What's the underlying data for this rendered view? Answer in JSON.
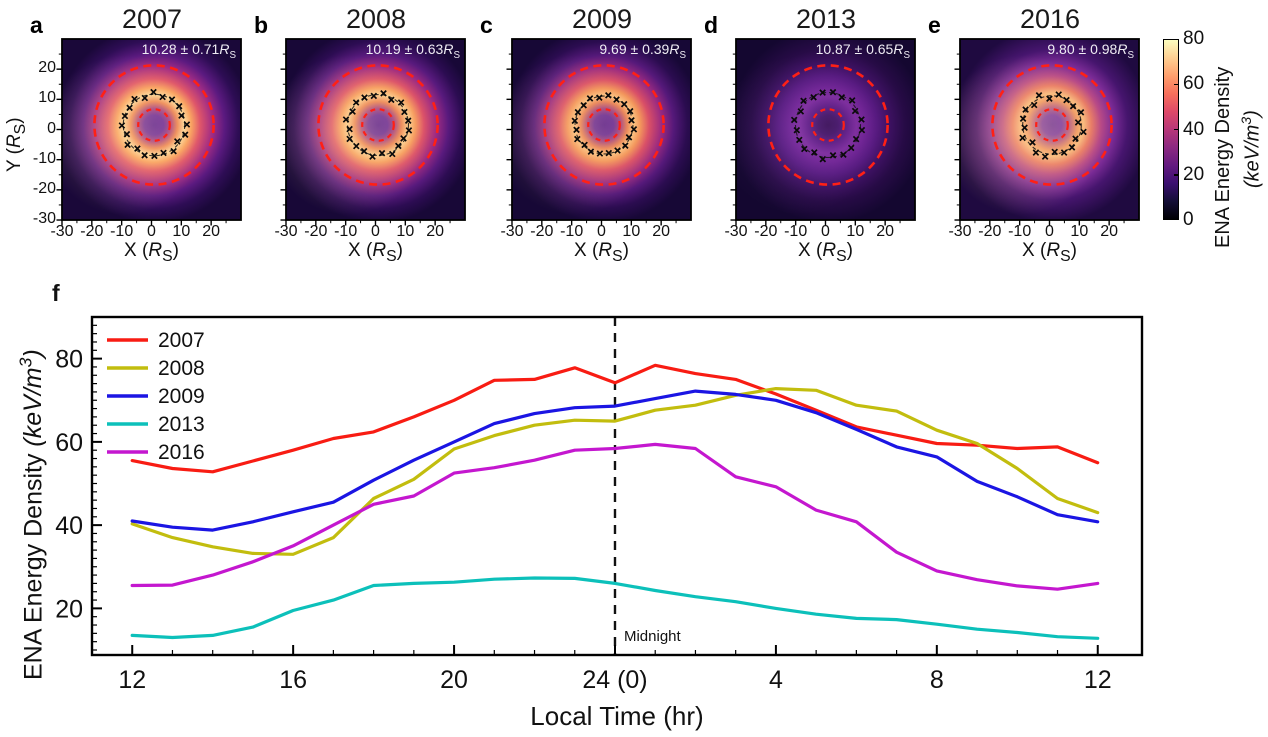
{
  "shared": {
    "r_symbol": "R",
    "r_sub": "S",
    "open": "(",
    "close": ")"
  },
  "heatmap_row": {
    "x_label_var": "X",
    "y_label_var": "Y",
    "x_ticks": [
      {
        "v": -30,
        "label": "-30"
      },
      {
        "v": -20,
        "label": "-20"
      },
      {
        "v": -10,
        "label": "-10"
      },
      {
        "v": 0,
        "label": "0"
      },
      {
        "v": 10,
        "label": "10"
      },
      {
        "v": 20,
        "label": "20"
      }
    ],
    "y_ticks": [
      {
        "v": 20,
        "label": "20"
      },
      {
        "v": 10,
        "label": "10"
      },
      {
        "v": 0,
        "label": "0"
      },
      {
        "v": -10,
        "label": "-10"
      },
      {
        "v": -20,
        "label": "-20"
      },
      {
        "v": -30,
        "label": "-30"
      }
    ],
    "axis_range_rs": [
      -30,
      30
    ],
    "outer_circle_radius_rs": 20,
    "inner_circle_radius_rs": 5.3,
    "circle_color": "#ff2015"
  },
  "panels": [
    {
      "letter": "a",
      "year": "2007",
      "ring_radius_text": "10.28 ± 0.71",
      "ring_radius_rs": 10.28,
      "ring_radius_err": 0.71,
      "seed": 0.3,
      "glow_color": "#ffd9a0",
      "glow_opacity": 0.32,
      "palette": [
        [
          0,
          "#5e2296"
        ],
        [
          0.1,
          "#6c2a9c"
        ],
        [
          0.17,
          "#a84383"
        ],
        [
          0.24,
          "#ee8a58"
        ],
        [
          0.31,
          "#fdd89a"
        ],
        [
          0.38,
          "#f9a15f"
        ],
        [
          0.47,
          "#df5569"
        ],
        [
          0.6,
          "#a02c85"
        ],
        [
          0.72,
          "#5b1a80"
        ],
        [
          0.86,
          "#2e0d55"
        ],
        [
          1,
          "#1a0839"
        ]
      ]
    },
    {
      "letter": "b",
      "year": "2008",
      "ring_radius_text": "10.19 ± 0.63",
      "ring_radius_rs": 10.19,
      "ring_radius_err": 0.63,
      "seed": 0.8,
      "glow_color": "#ffd9a0",
      "glow_opacity": 0.34,
      "palette": [
        [
          0,
          "#5a2093"
        ],
        [
          0.1,
          "#682a9a"
        ],
        [
          0.17,
          "#a64381"
        ],
        [
          0.24,
          "#ec8656"
        ],
        [
          0.31,
          "#fccf8f"
        ],
        [
          0.38,
          "#f69c5e"
        ],
        [
          0.47,
          "#dc5268"
        ],
        [
          0.6,
          "#9c2b83"
        ],
        [
          0.72,
          "#581a7d"
        ],
        [
          0.86,
          "#2c0c52"
        ],
        [
          1,
          "#180837"
        ]
      ]
    },
    {
      "letter": "c",
      "year": "2009",
      "ring_radius_text": "9.69 ± 0.39",
      "ring_radius_rs": 9.69,
      "ring_radius_err": 0.39,
      "seed": 1.4,
      "glow_color": "#ffd09a",
      "glow_opacity": 0.26,
      "palette": [
        [
          0,
          "#5b2191"
        ],
        [
          0.1,
          "#672a98"
        ],
        [
          0.17,
          "#a34380"
        ],
        [
          0.24,
          "#e98355"
        ],
        [
          0.3,
          "#fbc381"
        ],
        [
          0.37,
          "#f29459"
        ],
        [
          0.46,
          "#d94e66"
        ],
        [
          0.59,
          "#992a81"
        ],
        [
          0.71,
          "#55197a"
        ],
        [
          0.85,
          "#2b0c50"
        ],
        [
          1,
          "#170836"
        ]
      ]
    },
    {
      "letter": "d",
      "year": "2013",
      "ring_radius_text": "10.87 ± 0.65",
      "ring_radius_rs": 10.87,
      "ring_radius_err": 0.65,
      "seed": 0.15,
      "glow_color": "#c9a0e8",
      "glow_opacity": 0.1,
      "palette": [
        [
          0,
          "#3c1259"
        ],
        [
          0.1,
          "#451768"
        ],
        [
          0.2,
          "#611e87"
        ],
        [
          0.29,
          "#7c2c9c"
        ],
        [
          0.38,
          "#6f2394"
        ],
        [
          0.5,
          "#571a80"
        ],
        [
          0.63,
          "#3d1161"
        ],
        [
          0.78,
          "#270b46"
        ],
        [
          1,
          "#140730"
        ]
      ]
    },
    {
      "letter": "e",
      "year": "2016",
      "ring_radius_text": "9.80 ± 0.98",
      "ring_radius_rs": 9.8,
      "ring_radius_err": 0.98,
      "seed": 2.1,
      "glow_color": "#ffc896",
      "glow_opacity": 0.42,
      "palette": [
        [
          0,
          "#67309e"
        ],
        [
          0.1,
          "#7436a6"
        ],
        [
          0.18,
          "#b25b85"
        ],
        [
          0.26,
          "#ef9a62"
        ],
        [
          0.32,
          "#f8bc7d"
        ],
        [
          0.4,
          "#e87a64"
        ],
        [
          0.5,
          "#b84a86"
        ],
        [
          0.63,
          "#7b2b96"
        ],
        [
          0.77,
          "#46156e"
        ],
        [
          1,
          "#1f0a40"
        ]
      ]
    }
  ],
  "colorbar": {
    "ticks": [
      {
        "v": 80,
        "label": "80"
      },
      {
        "v": 60,
        "label": "60"
      },
      {
        "v": 40,
        "label": "40"
      },
      {
        "v": 20,
        "label": "20"
      },
      {
        "v": 0,
        "label": "0"
      }
    ],
    "label_line1": "ENA Energy Density",
    "unit_prefix": "(keV/m",
    "unit_sup": "3",
    "unit_suffix": ")",
    "gradient": [
      [
        0,
        "#fcfdbf"
      ],
      [
        0.1,
        "#fecf92"
      ],
      [
        0.2,
        "#fe9f6d"
      ],
      [
        0.3,
        "#f7705c"
      ],
      [
        0.4,
        "#de4968"
      ],
      [
        0.5,
        "#b73779"
      ],
      [
        0.6,
        "#8c2981"
      ],
      [
        0.7,
        "#641a80"
      ],
      [
        0.8,
        "#3b0f70"
      ],
      [
        0.9,
        "#140e36"
      ],
      [
        1,
        "#000004"
      ]
    ]
  },
  "line_chart": {
    "panel_letter": "f",
    "x_label": "Local Time (hr)",
    "y_label_prefix": "ENA Energy Density ",
    "unit_prefix": "(keV/m",
    "unit_sup": "3",
    "unit_suffix": ")",
    "midnight_label": "Midnight"
  },
  "chart_data": {
    "type": "line",
    "title": "",
    "xlabel": "Local Time (hr)",
    "ylabel": "ENA Energy Density (keV/m^3)",
    "xlim": [
      11,
      37.1
    ],
    "ylim": [
      8.8,
      90
    ],
    "x_ticks": [
      {
        "v": 12,
        "label": "12"
      },
      {
        "v": 16,
        "label": "16"
      },
      {
        "v": 20,
        "label": "20"
      },
      {
        "v": 24,
        "label": "24 (0)"
      },
      {
        "v": 28,
        "label": "4"
      },
      {
        "v": 32,
        "label": "8"
      },
      {
        "v": 36,
        "label": "12"
      }
    ],
    "y_ticks": [
      20,
      40,
      60,
      80
    ],
    "midnight_x": 24,
    "legend_position": "upper left",
    "grid": false,
    "x": [
      12,
      13,
      14,
      15,
      16,
      17,
      18,
      19,
      20,
      21,
      22,
      23,
      24,
      25,
      26,
      27,
      28,
      29,
      30,
      31,
      32,
      33,
      34,
      35,
      36
    ],
    "series": [
      {
        "name": "2007",
        "color": "#f81c13",
        "values": [
          55.5,
          53.6,
          52.8,
          55.4,
          58,
          60.8,
          62.4,
          66,
          70,
          74.8,
          75,
          77.8,
          74.2,
          78.4,
          76.4,
          75,
          71.5,
          67.6,
          63.6,
          61.6,
          59.6,
          59.2,
          58.4,
          58.8,
          55
        ]
      },
      {
        "name": "2008",
        "color": "#c2bd0e",
        "values": [
          40.3,
          37,
          34.8,
          33.2,
          33,
          37,
          46.4,
          51,
          58.3,
          61.5,
          64,
          65.2,
          65,
          67.6,
          68.8,
          71.2,
          72.8,
          72.4,
          68.8,
          67.4,
          62.8,
          59.6,
          53.6,
          46.4,
          43
        ]
      },
      {
        "name": "2009",
        "color": "#1b15e3",
        "values": [
          41,
          39.5,
          38.8,
          40.8,
          43.2,
          45.5,
          50.8,
          55.6,
          60,
          64.4,
          66.8,
          68.2,
          68.6,
          70.4,
          72.2,
          71.4,
          70,
          67,
          63,
          58.8,
          56.4,
          50.5,
          46.8,
          42.5,
          40.8
        ]
      },
      {
        "name": "2013",
        "color": "#0cc0ba",
        "values": [
          13.5,
          13,
          13.5,
          15.5,
          19.5,
          22,
          25.5,
          26,
          26.3,
          27,
          27.3,
          27.2,
          26,
          24.3,
          22.8,
          21.6,
          20,
          18.6,
          17.6,
          17.3,
          16.2,
          15,
          14.2,
          13.2,
          12.8
        ]
      },
      {
        "name": "2016",
        "color": "#c417cf",
        "values": [
          25.5,
          25.6,
          28,
          31.2,
          35,
          40,
          45,
          47,
          52.5,
          53.8,
          55.6,
          58,
          58.4,
          59.4,
          58.4,
          51.6,
          49.2,
          43.6,
          40.8,
          33.5,
          29,
          26.9,
          25.4,
          24.6,
          26
        ]
      }
    ]
  }
}
